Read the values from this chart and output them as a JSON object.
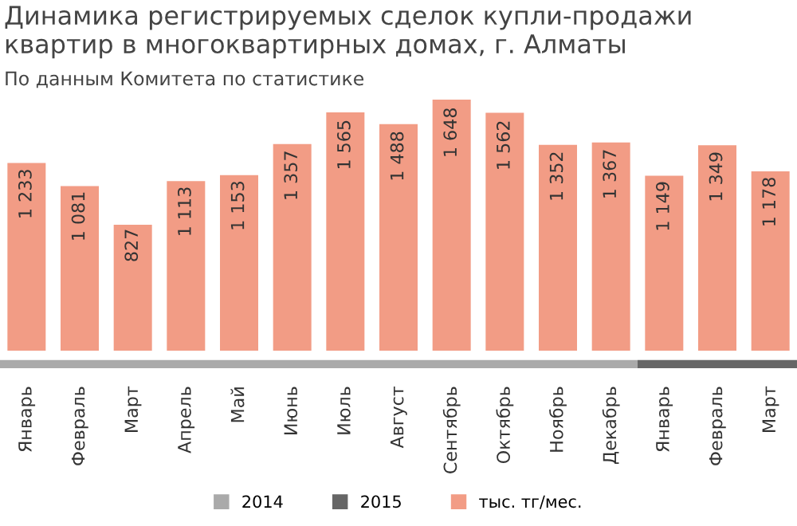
{
  "chart_data": {
    "type": "bar",
    "title": "Динамика регистрируемых сделок купли-продажи\nквартир в многоквартирных домах, г. Алматы",
    "subtitle": "По данным Комитета по статистике",
    "categories": [
      "Январь",
      "Февраль",
      "Март",
      "Апрель",
      "Май",
      "Июнь",
      "Июль",
      "Август",
      "Сентябрь",
      "Октябрь",
      "Ноябрь",
      "Декабрь",
      "Январь",
      "Февраль",
      "Март"
    ],
    "series": [
      {
        "name": "тыс. тг/мес.",
        "color": "#f29c85",
        "values": [
          1233,
          1081,
          827,
          1113,
          1153,
          1357,
          1565,
          1488,
          1648,
          1562,
          1352,
          1367,
          1149,
          1349,
          1178
        ],
        "value_labels": [
          "1 233",
          "1 081",
          "827",
          "1 113",
          "1 153",
          "1 357",
          "1 565",
          "1 488",
          "1 648",
          "1 562",
          "1 352",
          "1 367",
          "1 149",
          "1 349",
          "1 178"
        ]
      }
    ],
    "annotations": [
      "2014",
      "2015"
    ],
    "legend": "bottom",
    "grid": false
  }
}
